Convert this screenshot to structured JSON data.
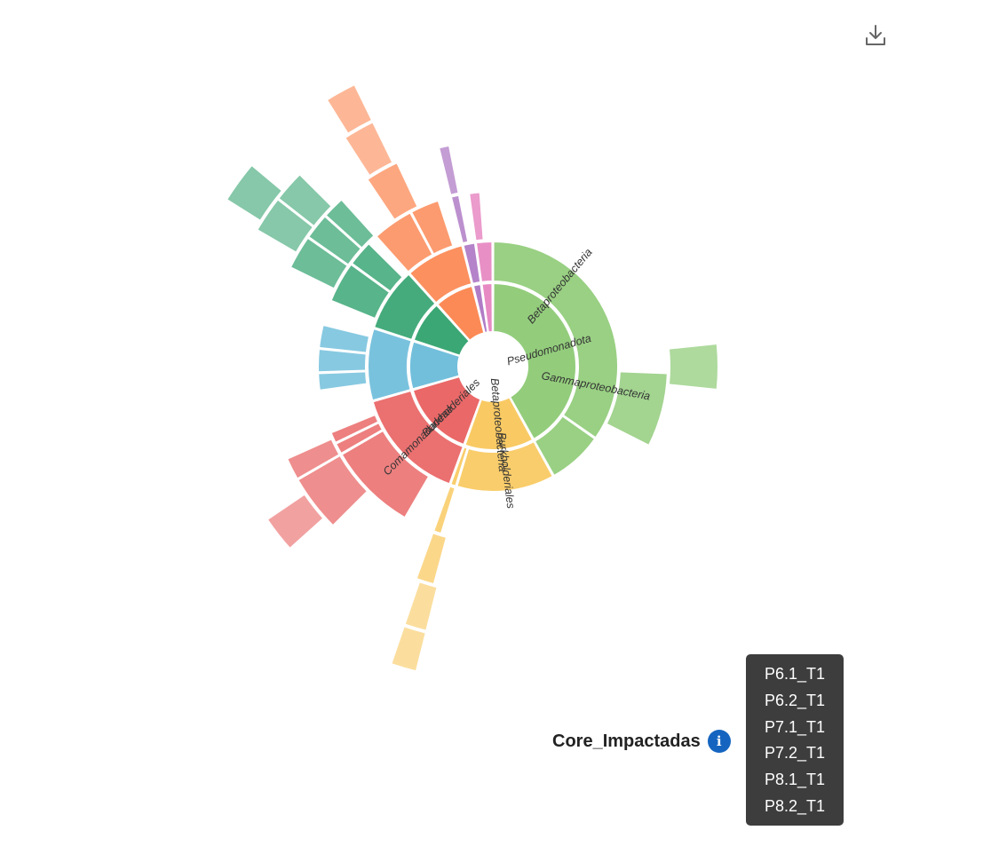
{
  "chart_data": {
    "type": "sunburst",
    "labels": [
      {
        "text": "Pseudomonadota"
      },
      {
        "text": "Betaproteobacteria"
      },
      {
        "text": "Gammaproteobacteria"
      },
      {
        "text": "Betaproteobacteria"
      },
      {
        "text": "Burkholderiales"
      },
      {
        "text": "Burkholderiales"
      },
      {
        "text": "Comamonadaceae"
      }
    ]
  },
  "legend": {
    "title": "Core_Impactadas",
    "info_icon": "info-icon"
  },
  "tooltip": {
    "items": [
      "P6.1_T1",
      "P6.2_T1",
      "P7.1_T1",
      "P7.2_T1",
      "P8.1_T1",
      "P8.2_T1"
    ]
  },
  "toolbar": {
    "download_icon": "download-icon"
  },
  "colors": {
    "green": "#93cd7c",
    "yellow": "#f9ca63",
    "red": "#ea6868",
    "blue": "#72bfdc",
    "teal": "#3ba775",
    "orange": "#fc8a56",
    "purple": "#b07cc6",
    "pink": "#e78ac3",
    "info": "#1565c0"
  }
}
